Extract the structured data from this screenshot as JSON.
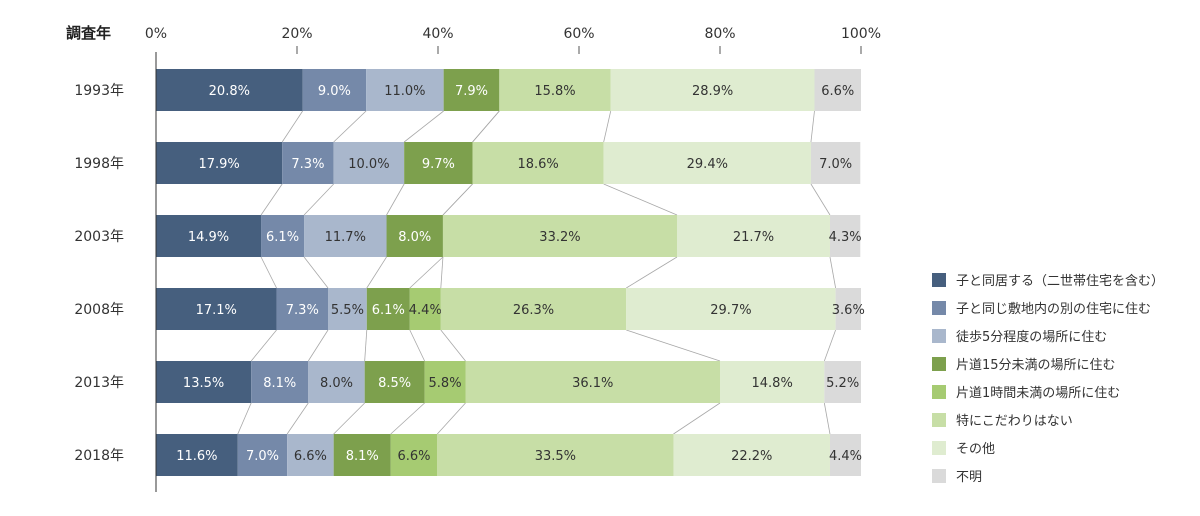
{
  "chart_data": {
    "type": "bar",
    "orientation": "horizontal",
    "stacked": true,
    "normalized": true,
    "category_axis_title": "調査年",
    "xlim": [
      0,
      100
    ],
    "x_ticks": [
      "0%",
      "20%",
      "40%",
      "60%",
      "80%",
      "100%"
    ],
    "categories": [
      "1993年",
      "1998年",
      "2003年",
      "2008年",
      "2013年",
      "2018年"
    ],
    "legend_position": "right",
    "grid": false,
    "series": [
      {
        "name": "子と同居する（二世帯住宅を含む）",
        "color": "#465f7e",
        "values": [
          20.8,
          17.9,
          14.9,
          17.1,
          13.5,
          11.6
        ]
      },
      {
        "name": "子と同じ敷地内の別の住宅に住む",
        "color": "#7589a9",
        "values": [
          9.0,
          7.3,
          6.1,
          7.3,
          8.1,
          7.0
        ]
      },
      {
        "name": "徒歩5分程度の場所に住む",
        "color": "#a9b7cc",
        "values": [
          11.0,
          10.0,
          11.7,
          5.5,
          8.0,
          6.6
        ]
      },
      {
        "name": "片道15分未満の場所に住む",
        "color": "#7da04d",
        "values": [
          7.9,
          9.7,
          8.0,
          6.1,
          8.5,
          8.1
        ]
      },
      {
        "name": "片道1時間未満の場所に住む",
        "color": "#a6cb72",
        "values": [
          null,
          null,
          null,
          4.4,
          5.8,
          6.6
        ]
      },
      {
        "name": "特にこだわりはない",
        "color": "#c7dea6",
        "values": [
          15.8,
          18.6,
          33.2,
          26.3,
          36.1,
          33.5
        ]
      },
      {
        "name": "その他",
        "color": "#dfecd0",
        "values": [
          28.9,
          29.4,
          21.7,
          29.7,
          14.8,
          22.2
        ]
      },
      {
        "name": "不明",
        "color": "#dadada",
        "values": [
          6.6,
          7.0,
          4.3,
          3.6,
          5.2,
          4.4
        ]
      }
    ],
    "labels": [
      [
        "20.8%",
        "9.0%",
        "11.0%",
        "7.9%",
        "",
        "15.8%",
        "28.9%",
        "6.6%"
      ],
      [
        "17.9%",
        "7.3%",
        "10.0%",
        "9.7%",
        "",
        "18.6%",
        "29.4%",
        "7.0%"
      ],
      [
        "14.9%",
        "6.1%",
        "11.7%",
        "8.0%",
        "",
        "33.2%",
        "21.7%",
        "4.3%"
      ],
      [
        "17.1%",
        "7.3%",
        "5.5%",
        "6.1%",
        "4.4%",
        "26.3%",
        "29.7%",
        "3.6%"
      ],
      [
        "13.5%",
        "8.1%",
        "8.0%",
        "8.5%",
        "5.8%",
        "36.1%",
        "14.8%",
        "5.2%"
      ],
      [
        "11.6%",
        "7.0%",
        "6.6%",
        "8.1%",
        "6.6%",
        "33.5%",
        "22.2%",
        "4.4%"
      ]
    ],
    "label_colors": [
      "#ffffff",
      "#ffffff",
      "#333333",
      "#ffffff",
      "#333333",
      "#333333",
      "#333333",
      "#333333"
    ]
  }
}
